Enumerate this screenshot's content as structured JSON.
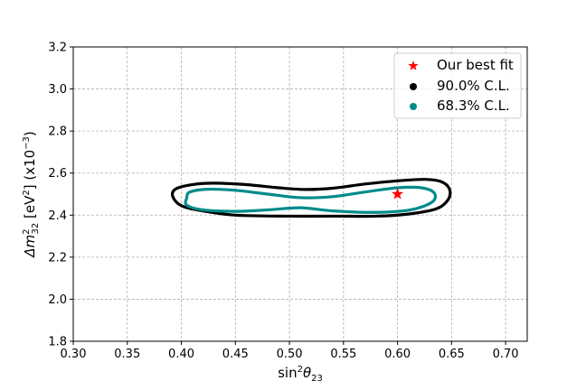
{
  "chart_data": {
    "type": "scatter",
    "xlabel_base": "sin",
    "xlabel_sup": "2",
    "xlabel_theta": "θ",
    "xlabel_sub": "23",
    "ylabel_delta": "Δ",
    "ylabel_m": "m",
    "ylabel_sup": "2",
    "ylabel_sub": "32",
    "ylabel_unit_pre": " [eV",
    "ylabel_unit_sup": "2",
    "ylabel_unit_post": "] (x10",
    "ylabel_exp": "−3",
    "ylabel_close": ")",
    "xlim": [
      0.3,
      0.72
    ],
    "ylim": [
      1.8,
      3.2
    ],
    "xticks": [
      0.3,
      0.35,
      0.4,
      0.45,
      0.5,
      0.55,
      0.6,
      0.65,
      0.7
    ],
    "xtick_labels": [
      "0.30",
      "0.35",
      "0.40",
      "0.45",
      "0.50",
      "0.55",
      "0.60",
      "0.65",
      "0.70"
    ],
    "yticks": [
      1.8,
      2.0,
      2.2,
      2.4,
      2.6,
      2.8,
      3.0,
      3.2
    ],
    "ytick_labels": [
      "1.8",
      "2.0",
      "2.2",
      "2.4",
      "2.6",
      "2.8",
      "3.0",
      "3.2"
    ],
    "grid": true,
    "legend_position": "top-right",
    "legend": [
      {
        "label": "Our best fit",
        "color": "#ff0000",
        "marker": "star"
      },
      {
        "label": "90.0% C.L.",
        "color": "#000000",
        "marker": "circle"
      },
      {
        "label": "68.3% C.L.",
        "color": "#008b8b",
        "marker": "circle"
      }
    ],
    "series": [
      {
        "name": "90.0% C.L.",
        "color": "#000000",
        "closed": true,
        "points": [
          [
            0.392,
            2.49
          ],
          [
            0.395,
            2.525
          ],
          [
            0.41,
            2.545
          ],
          [
            0.43,
            2.552
          ],
          [
            0.46,
            2.545
          ],
          [
            0.49,
            2.53
          ],
          [
            0.515,
            2.522
          ],
          [
            0.54,
            2.528
          ],
          [
            0.57,
            2.548
          ],
          [
            0.6,
            2.563
          ],
          [
            0.625,
            2.57
          ],
          [
            0.64,
            2.56
          ],
          [
            0.648,
            2.525
          ],
          [
            0.647,
            2.475
          ],
          [
            0.636,
            2.43
          ],
          [
            0.61,
            2.405
          ],
          [
            0.58,
            2.395
          ],
          [
            0.54,
            2.395
          ],
          [
            0.5,
            2.395
          ],
          [
            0.45,
            2.4
          ],
          [
            0.42,
            2.42
          ],
          [
            0.4,
            2.445
          ],
          [
            0.392,
            2.49
          ]
        ]
      },
      {
        "name": "68.3% C.L.",
        "color": "#008b8b",
        "closed": true,
        "points": [
          [
            0.405,
            2.482
          ],
          [
            0.408,
            2.51
          ],
          [
            0.425,
            2.523
          ],
          [
            0.45,
            2.518
          ],
          [
            0.48,
            2.5
          ],
          [
            0.51,
            2.483
          ],
          [
            0.54,
            2.488
          ],
          [
            0.57,
            2.51
          ],
          [
            0.6,
            2.53
          ],
          [
            0.622,
            2.53
          ],
          [
            0.634,
            2.505
          ],
          [
            0.632,
            2.462
          ],
          [
            0.612,
            2.425
          ],
          [
            0.58,
            2.413
          ],
          [
            0.54,
            2.42
          ],
          [
            0.51,
            2.435
          ],
          [
            0.48,
            2.425
          ],
          [
            0.45,
            2.418
          ],
          [
            0.42,
            2.425
          ],
          [
            0.405,
            2.448
          ],
          [
            0.405,
            2.482
          ]
        ]
      }
    ],
    "best_fit": {
      "name": "Our best fit",
      "x": 0.6,
      "y": 2.5,
      "color": "#ff0000"
    }
  }
}
